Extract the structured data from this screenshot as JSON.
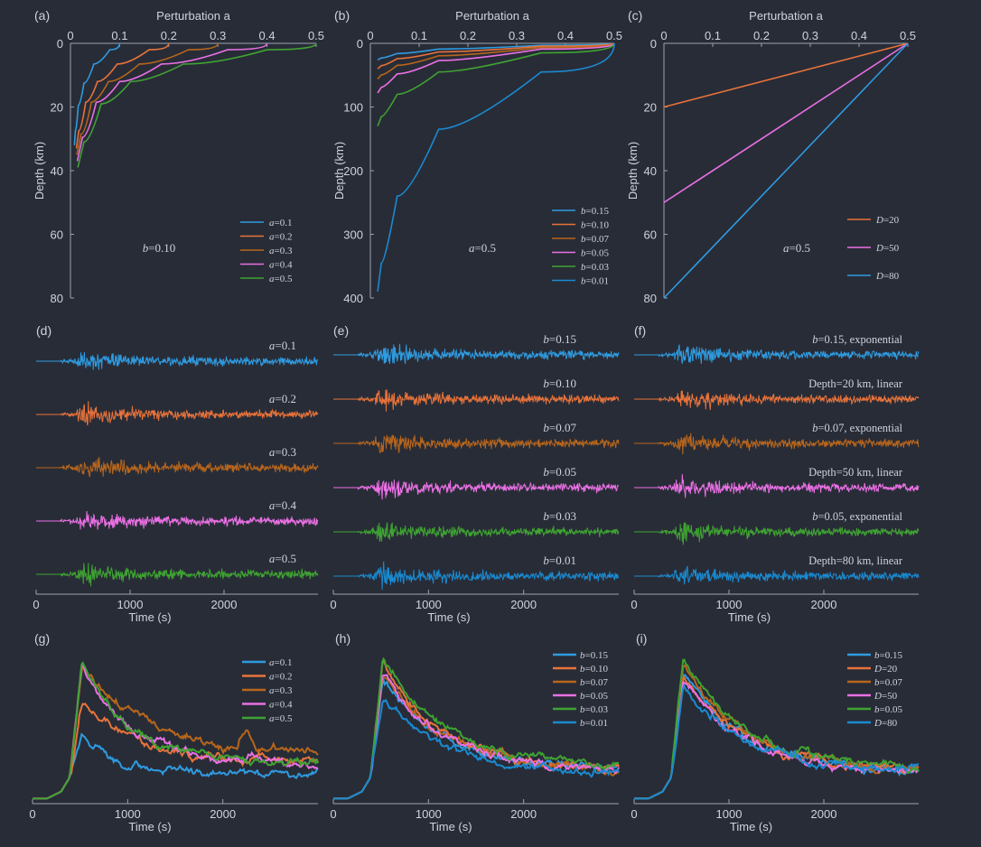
{
  "figure_panels": [
    "(a)",
    "(b)",
    "(c)",
    "(d)",
    "(e)",
    "(f)",
    "(g)",
    "(h)",
    "(i)"
  ],
  "colors": {
    "blue": "#2f9be0",
    "orange": "#e8733a",
    "brown": "#b8661c",
    "pink": "#ea70e4",
    "green": "#3fa332",
    "blue2": "#1a8ad0"
  },
  "chart_data": [
    {
      "panel": "(a)",
      "type": "line",
      "title": "Perturbation a",
      "xlabel": "Perturbation a",
      "ylabel": "Depth (km)",
      "xlim": [
        0,
        0.5
      ],
      "ylim": [
        80,
        0
      ],
      "xticks": [
        "0",
        "0.1",
        "0.2",
        "0.3",
        "0.4",
        "0.5"
      ],
      "yticks": [
        "0",
        "20",
        "40",
        "60",
        "80"
      ],
      "annotation": "b=0.10",
      "legend_position": "bottom-right",
      "series": [
        {
          "name": "a=0.1",
          "color": "#2f9be0",
          "x": [
            0.1,
            0.06,
            0.035,
            0.02,
            0.012,
            0.008
          ],
          "y": [
            0,
            4,
            9,
            16,
            23,
            32
          ]
        },
        {
          "name": "a=0.2",
          "color": "#e8733a",
          "x": [
            0.2,
            0.12,
            0.07,
            0.04,
            0.022,
            0.012
          ],
          "y": [
            0,
            4,
            9,
            15,
            22,
            33
          ]
        },
        {
          "name": "a=0.3",
          "color": "#b8661c",
          "x": [
            0.3,
            0.18,
            0.1,
            0.055,
            0.03,
            0.013
          ],
          "y": [
            0,
            4,
            9,
            15,
            22,
            35
          ]
        },
        {
          "name": "a=0.4",
          "color": "#ea70e4",
          "x": [
            0.4,
            0.24,
            0.13,
            0.07,
            0.035,
            0.014
          ],
          "y": [
            0,
            4,
            9,
            15,
            22,
            37
          ]
        },
        {
          "name": "a=0.5",
          "color": "#3fa332",
          "x": [
            0.5,
            0.3,
            0.16,
            0.085,
            0.04,
            0.015
          ],
          "y": [
            0,
            4,
            9,
            15,
            23,
            39
          ]
        }
      ]
    },
    {
      "panel": "(b)",
      "type": "line",
      "title": "Perturbation a",
      "xlabel": "Perturbation a",
      "ylabel": "Depth (km)",
      "xlim": [
        0,
        0.5
      ],
      "ylim": [
        400,
        0
      ],
      "xticks": [
        "0",
        "0.1",
        "0.2",
        "0.3",
        "0.4",
        "0.5"
      ],
      "yticks": [
        "0",
        "100",
        "200",
        "300",
        "400"
      ],
      "annotation": "a=0.5",
      "legend_position": "bottom-right",
      "series": [
        {
          "name": "b=0.15",
          "color": "#2f9be0",
          "x": [
            0.5,
            0.2,
            0.08,
            0.03,
            0.015
          ],
          "y": [
            0,
            6,
            12,
            20,
            26
          ]
        },
        {
          "name": "b=0.10",
          "color": "#e8733a",
          "x": [
            0.5,
            0.2,
            0.08,
            0.03,
            0.015
          ],
          "y": [
            0,
            9,
            18,
            30,
            40
          ]
        },
        {
          "name": "b=0.07",
          "color": "#b8661c",
          "x": [
            0.5,
            0.2,
            0.08,
            0.03,
            0.015
          ],
          "y": [
            0,
            13,
            26,
            43,
            56
          ]
        },
        {
          "name": "b=0.05",
          "color": "#ea70e4",
          "x": [
            0.5,
            0.2,
            0.08,
            0.03,
            0.015
          ],
          "y": [
            0,
            18,
            36,
            60,
            78
          ]
        },
        {
          "name": "b=0.03",
          "color": "#3fa332",
          "x": [
            0.5,
            0.2,
            0.08,
            0.03,
            0.015
          ],
          "y": [
            0,
            30,
            60,
            100,
            130
          ]
        },
        {
          "name": "b=0.01",
          "color": "#1a8ad0",
          "x": [
            0.5,
            0.2,
            0.08,
            0.03,
            0.015
          ],
          "y": [
            0,
            90,
            180,
            300,
            390
          ]
        }
      ]
    },
    {
      "panel": "(c)",
      "type": "line",
      "title": "Perturbation a",
      "xlabel": "Perturbation a",
      "ylabel": "Depth (km)",
      "xlim": [
        0,
        0.5
      ],
      "ylim": [
        80,
        0
      ],
      "xticks": [
        "0",
        "0.1",
        "0.2",
        "0.3",
        "0.4",
        "0.5"
      ],
      "yticks": [
        "0",
        "20",
        "40",
        "60",
        "80"
      ],
      "annotation": "a=0.5",
      "legend_position": "right",
      "series": [
        {
          "name": "D=20",
          "color": "#e8733a",
          "x": [
            0,
            0.5
          ],
          "y": [
            20,
            0
          ]
        },
        {
          "name": "D=50",
          "color": "#ea70e4",
          "x": [
            0,
            0.5
          ],
          "y": [
            50,
            0
          ]
        },
        {
          "name": "D=80",
          "color": "#2f9be0",
          "x": [
            0,
            0.5
          ],
          "y": [
            80,
            0
          ]
        }
      ]
    },
    {
      "panel": "(d)",
      "type": "line",
      "xlabel": "Time (s)",
      "xlim": [
        0,
        3000
      ],
      "xticks": [
        "0",
        "1000",
        "2000"
      ],
      "series": [
        {
          "name": "a=0.1",
          "color": "#2f9be0"
        },
        {
          "name": "a=0.2",
          "color": "#e8733a"
        },
        {
          "name": "a=0.3",
          "color": "#b8661c"
        },
        {
          "name": "a=0.4",
          "color": "#ea70e4"
        },
        {
          "name": "a=0.5",
          "color": "#3fa332"
        }
      ]
    },
    {
      "panel": "(e)",
      "type": "line",
      "xlabel": "Time (s)",
      "xlim": [
        0,
        3000
      ],
      "xticks": [
        "0",
        "1000",
        "2000"
      ],
      "series": [
        {
          "name": "b=0.15",
          "color": "#2f9be0"
        },
        {
          "name": "b=0.10",
          "color": "#e8733a"
        },
        {
          "name": "b=0.07",
          "color": "#b8661c"
        },
        {
          "name": "b=0.05",
          "color": "#ea70e4"
        },
        {
          "name": "b=0.03",
          "color": "#3fa332"
        },
        {
          "name": "b=0.01",
          "color": "#1a8ad0"
        }
      ]
    },
    {
      "panel": "(f)",
      "type": "line",
      "xlabel": "Time (s)",
      "xlim": [
        0,
        3000
      ],
      "xticks": [
        "0",
        "1000",
        "2000"
      ],
      "series": [
        {
          "name": "b=0.15, exponential",
          "color": "#2f9be0"
        },
        {
          "name": "Depth=20 km, linear",
          "color": "#e8733a"
        },
        {
          "name": "b=0.07, exponential",
          "color": "#b8661c"
        },
        {
          "name": "Depth=50 km, linear",
          "color": "#ea70e4"
        },
        {
          "name": "b=0.05, exponential",
          "color": "#3fa332"
        },
        {
          "name": "Depth=80 km, linear",
          "color": "#1a8ad0"
        }
      ]
    },
    {
      "panel": "(g)",
      "type": "line",
      "xlabel": "Time (s)",
      "xlim": [
        0,
        3000
      ],
      "xticks": [
        "0",
        "1000",
        "2000"
      ],
      "legend_position": "top-right",
      "series": [
        {
          "name": "a=0.1",
          "color": "#2f9be0"
        },
        {
          "name": "a=0.2",
          "color": "#e8733a"
        },
        {
          "name": "a=0.3",
          "color": "#b8661c"
        },
        {
          "name": "a=0.4",
          "color": "#ea70e4"
        },
        {
          "name": "a=0.5",
          "color": "#3fa332"
        }
      ]
    },
    {
      "panel": "(h)",
      "type": "line",
      "xlabel": "Time (s)",
      "xlim": [
        0,
        3000
      ],
      "xticks": [
        "0",
        "1000",
        "2000"
      ],
      "legend_position": "top-right",
      "series": [
        {
          "name": "b=0.15",
          "color": "#2f9be0"
        },
        {
          "name": "b=0.10",
          "color": "#e8733a"
        },
        {
          "name": "b=0.07",
          "color": "#b8661c"
        },
        {
          "name": "b=0.05",
          "color": "#ea70e4"
        },
        {
          "name": "b=0.03",
          "color": "#3fa332"
        },
        {
          "name": "b=0.01",
          "color": "#1a8ad0"
        }
      ]
    },
    {
      "panel": "(i)",
      "type": "line",
      "xlabel": "Time (s)",
      "xlim": [
        0,
        3000
      ],
      "xticks": [
        "0",
        "1000",
        "2000"
      ],
      "legend_position": "top-right",
      "series": [
        {
          "name": "b=0.15",
          "color": "#2f9be0"
        },
        {
          "name": "D=20",
          "color": "#e8733a"
        },
        {
          "name": "b=0.07",
          "color": "#b8661c"
        },
        {
          "name": "D=50",
          "color": "#ea70e4"
        },
        {
          "name": "b=0.05",
          "color": "#3fa332"
        },
        {
          "name": "D=80",
          "color": "#1a8ad0"
        }
      ]
    }
  ]
}
